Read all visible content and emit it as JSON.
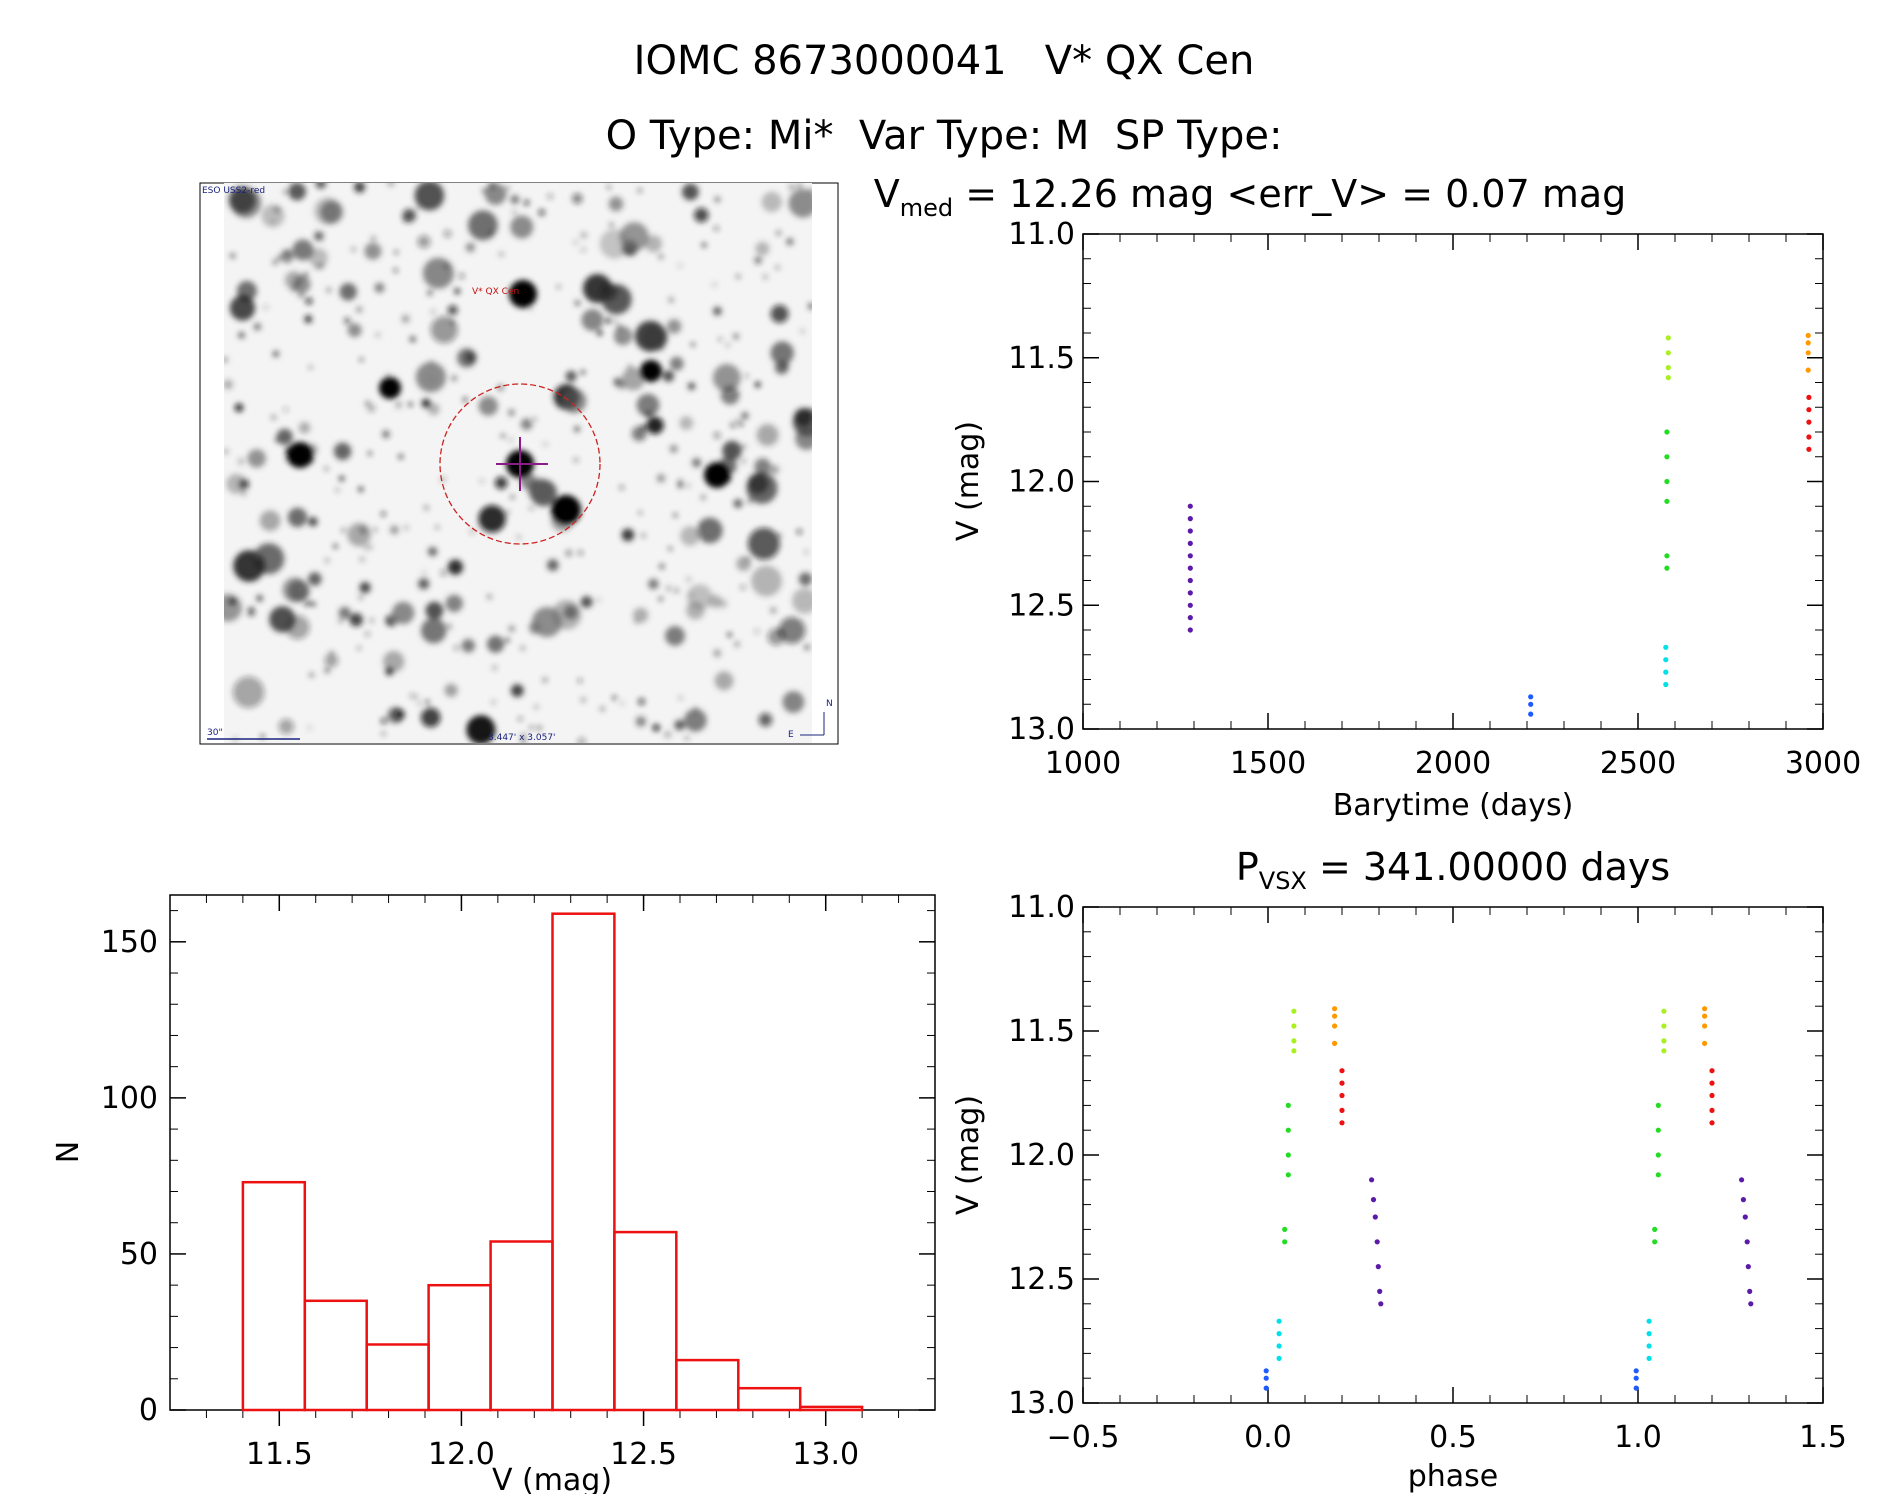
{
  "header": {
    "line1": "IOMC 8673000041   V* QX Cen",
    "line2": "O Type: Mi*  Var Type: M  SP Type:"
  },
  "finder": {
    "survey_label": "ESO USS2-red",
    "target_label": "V* QX Cen",
    "scale_label": "30\"",
    "fov_label": "3.447' x 3.057'",
    "north_label": "N",
    "east_label": "E"
  },
  "chart_data": [
    {
      "type": "scatter",
      "id": "lightcurve",
      "title_main": "V",
      "title_sub": "med",
      "title_rest": " = 12.26 mag <err_V> = 0.07 mag",
      "xlabel": "Barytime (days)",
      "ylabel": "V (mag)",
      "xlim": [
        1000,
        3000
      ],
      "ylim": [
        13.0,
        11.0
      ],
      "y_inverted": true,
      "xticks": [
        "1000",
        "1500",
        "2000",
        "2500",
        "3000"
      ],
      "yticks": [
        "11.0",
        "11.5",
        "12.0",
        "12.5",
        "13.0"
      ],
      "series": [
        {
          "color": "#5b1aa8",
          "points": [
            [
              1290,
              12.1
            ],
            [
              1290,
              12.15
            ],
            [
              1290,
              12.2
            ],
            [
              1290,
              12.25
            ],
            [
              1290,
              12.3
            ],
            [
              1290,
              12.35
            ],
            [
              1290,
              12.4
            ],
            [
              1290,
              12.45
            ],
            [
              1290,
              12.5
            ],
            [
              1290,
              12.55
            ],
            [
              1290,
              12.6
            ]
          ]
        },
        {
          "color": "#1e5bff",
          "points": [
            [
              2210,
              12.87
            ],
            [
              2210,
              12.9
            ],
            [
              2210,
              12.94
            ]
          ]
        },
        {
          "color": "#00e0e8",
          "points": [
            [
              2575,
              12.67
            ],
            [
              2575,
              12.72
            ],
            [
              2575,
              12.77
            ],
            [
              2575,
              12.82
            ]
          ]
        },
        {
          "color": "#22dd22",
          "points": [
            [
              2578,
              11.8
            ],
            [
              2578,
              11.9
            ],
            [
              2578,
              12.0
            ],
            [
              2578,
              12.08
            ],
            [
              2578,
              12.3
            ],
            [
              2578,
              12.35
            ]
          ]
        },
        {
          "color": "#a8f020",
          "points": [
            [
              2582,
              11.42
            ],
            [
              2582,
              11.48
            ],
            [
              2582,
              11.54
            ],
            [
              2582,
              11.58
            ]
          ]
        },
        {
          "color": "#ff9900",
          "points": [
            [
              2960,
              11.41
            ],
            [
              2960,
              11.44
            ],
            [
              2960,
              11.48
            ],
            [
              2960,
              11.55
            ]
          ]
        },
        {
          "color": "#ee1111",
          "points": [
            [
              2962,
              11.66
            ],
            [
              2962,
              11.71
            ],
            [
              2962,
              11.76
            ],
            [
              2962,
              11.82
            ],
            [
              2962,
              11.87
            ]
          ]
        }
      ]
    },
    {
      "type": "bar",
      "id": "histogram",
      "xlabel": "V (mag)",
      "ylabel": "N",
      "xlim": [
        11.2,
        13.3
      ],
      "ylim": [
        0,
        165
      ],
      "xticks": [
        "11.5",
        "12.0",
        "12.5",
        "13.0"
      ],
      "yticks": [
        "0",
        "50",
        "100",
        "150"
      ],
      "color": "#ee1111",
      "bin_edges": [
        11.4,
        11.57,
        11.74,
        11.91,
        12.08,
        12.25,
        12.42,
        12.59,
        12.76,
        12.93,
        13.1
      ],
      "values": [
        73,
        35,
        21,
        40,
        54,
        159,
        57,
        16,
        7,
        1
      ]
    },
    {
      "type": "scatter",
      "id": "phased",
      "title_main": "P",
      "title_sub": "VSX",
      "title_rest": " = 341.00000 days",
      "xlabel": "phase",
      "ylabel": "V (mag)",
      "xlim": [
        -0.5,
        1.5
      ],
      "ylim": [
        13.0,
        11.0
      ],
      "y_inverted": true,
      "xticks": [
        "−0.5",
        "0.0",
        "0.5",
        "1.0",
        "1.5"
      ],
      "yticks": [
        "11.0",
        "11.5",
        "12.0",
        "12.5",
        "13.0"
      ],
      "series": [
        {
          "color": "#5b1aa8",
          "points": [
            [
              0.28,
              12.1
            ],
            [
              0.285,
              12.18
            ],
            [
              0.29,
              12.25
            ],
            [
              0.295,
              12.35
            ],
            [
              0.298,
              12.45
            ],
            [
              0.302,
              12.55
            ],
            [
              0.305,
              12.6
            ],
            [
              1.28,
              12.1
            ],
            [
              1.285,
              12.18
            ],
            [
              1.29,
              12.25
            ],
            [
              1.295,
              12.35
            ],
            [
              1.298,
              12.45
            ],
            [
              1.302,
              12.55
            ],
            [
              1.305,
              12.6
            ]
          ]
        },
        {
          "color": "#1e5bff",
          "points": [
            [
              -0.005,
              12.87
            ],
            [
              -0.005,
              12.9
            ],
            [
              -0.005,
              12.94
            ],
            [
              0.995,
              12.87
            ],
            [
              0.995,
              12.9
            ],
            [
              0.995,
              12.94
            ]
          ]
        },
        {
          "color": "#00e0e8",
          "points": [
            [
              0.03,
              12.67
            ],
            [
              0.03,
              12.72
            ],
            [
              0.03,
              12.77
            ],
            [
              0.03,
              12.82
            ],
            [
              1.03,
              12.67
            ],
            [
              1.03,
              12.72
            ],
            [
              1.03,
              12.77
            ],
            [
              1.03,
              12.82
            ]
          ]
        },
        {
          "color": "#22dd22",
          "points": [
            [
              0.055,
              11.8
            ],
            [
              0.055,
              11.9
            ],
            [
              0.055,
              12.0
            ],
            [
              0.055,
              12.08
            ],
            [
              0.045,
              12.3
            ],
            [
              0.045,
              12.35
            ],
            [
              1.055,
              11.8
            ],
            [
              1.055,
              11.9
            ],
            [
              1.055,
              12.0
            ],
            [
              1.055,
              12.08
            ],
            [
              1.045,
              12.3
            ],
            [
              1.045,
              12.35
            ]
          ]
        },
        {
          "color": "#a8f020",
          "points": [
            [
              0.07,
              11.42
            ],
            [
              0.07,
              11.48
            ],
            [
              0.07,
              11.54
            ],
            [
              0.07,
              11.58
            ],
            [
              1.07,
              11.42
            ],
            [
              1.07,
              11.48
            ],
            [
              1.07,
              11.54
            ],
            [
              1.07,
              11.58
            ]
          ]
        },
        {
          "color": "#ff9900",
          "points": [
            [
              0.18,
              11.41
            ],
            [
              0.18,
              11.44
            ],
            [
              0.18,
              11.48
            ],
            [
              0.18,
              11.55
            ],
            [
              1.18,
              11.41
            ],
            [
              1.18,
              11.44
            ],
            [
              1.18,
              11.48
            ],
            [
              1.18,
              11.55
            ]
          ]
        },
        {
          "color": "#ee1111",
          "points": [
            [
              0.2,
              11.66
            ],
            [
              0.2,
              11.71
            ],
            [
              0.2,
              11.76
            ],
            [
              0.2,
              11.82
            ],
            [
              0.2,
              11.87
            ],
            [
              1.2,
              11.66
            ],
            [
              1.2,
              11.71
            ],
            [
              1.2,
              11.76
            ],
            [
              1.2,
              11.82
            ],
            [
              1.2,
              11.87
            ]
          ]
        }
      ]
    }
  ]
}
